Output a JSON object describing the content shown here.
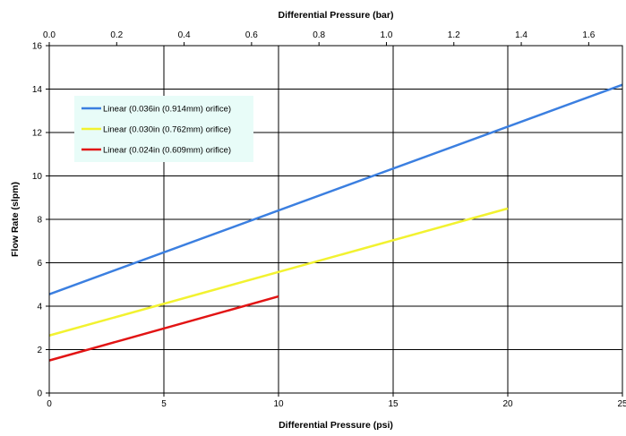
{
  "chart_data": {
    "type": "line",
    "title": "",
    "xlabel": "Differential Pressure (psi)",
    "ylabel": "Flow Rate (slpm)",
    "x2label": "Differential Pressure (bar)",
    "xlim": [
      0,
      25
    ],
    "ylim": [
      0,
      16
    ],
    "x2lim": [
      0,
      1.7
    ],
    "xticks": [
      "0",
      "5",
      "10",
      "15",
      "20",
      "25"
    ],
    "x2ticks": [
      "0.0",
      "0.2",
      "0.4",
      "0.6",
      "0.8",
      "1.0",
      "1.2",
      "1.4",
      "1.6"
    ],
    "yticks": [
      "0",
      "2",
      "4",
      "6",
      "8",
      "10",
      "12",
      "14",
      "16"
    ],
    "grid": true,
    "legend_position": "top-left",
    "series": [
      {
        "name": "Linear (0.036in (0.914mm) orifice)",
        "color": "#3b7fe0",
        "x": [
          0,
          25
        ],
        "y": [
          4.55,
          14.2
        ]
      },
      {
        "name": "Linear (0.030in (0.762mm) orifice)",
        "color": "#f2f230",
        "x": [
          0,
          20
        ],
        "y": [
          2.65,
          8.5
        ]
      },
      {
        "name": "Linear (0.024in (0.609mm) orifice)",
        "color": "#e21414",
        "x": [
          0,
          10
        ],
        "y": [
          1.5,
          4.45
        ]
      }
    ],
    "legend_background": "#e8fcf8"
  }
}
